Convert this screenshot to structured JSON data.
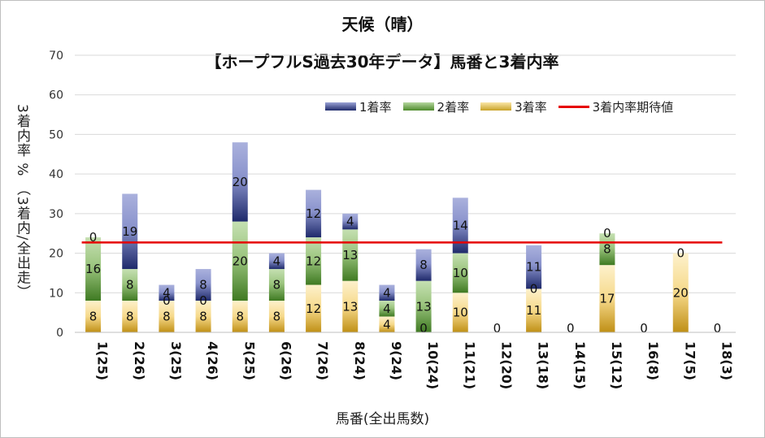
{
  "chart_data": {
    "type": "bar",
    "stacked": true,
    "title": "天候（晴）",
    "subtitle": "【ホープフルS過去30年データ】馬番と3着内率",
    "xlabel": "馬番(全出馬数)",
    "ylabel": "3着内率 %  （3着内/全出走）",
    "ylim": [
      0,
      70
    ],
    "yticks": [
      0,
      10,
      20,
      30,
      40,
      50,
      60,
      70
    ],
    "categories": [
      "1(25)",
      "2(26)",
      "3(25)",
      "4(26)",
      "5(25)",
      "6(26)",
      "7(26)",
      "8(24)",
      "9(24)",
      "10(24)",
      "11(21)",
      "12(20)",
      "13(18)",
      "14(15)",
      "15(12)",
      "16(8)",
      "17(5)",
      "18(3)"
    ],
    "series": [
      {
        "name": "3着率",
        "color": "#c9a227",
        "values": [
          8,
          8,
          8,
          8,
          8,
          8,
          12,
          13,
          4,
          0,
          10,
          0,
          11,
          0,
          17,
          0,
          20,
          0
        ]
      },
      {
        "name": "2着率",
        "color": "#4d8a2a",
        "values": [
          16,
          8,
          0,
          0,
          20,
          8,
          12,
          13,
          4,
          13,
          10,
          0,
          0,
          0,
          8,
          0,
          0,
          0
        ]
      },
      {
        "name": "1着率",
        "color": "#1f2a6b",
        "values": [
          0,
          19,
          4,
          8,
          20,
          4,
          12,
          4,
          4,
          8,
          14,
          0,
          11,
          0,
          0,
          0,
          0,
          0
        ]
      }
    ],
    "labels": {
      "3着率": [
        "8",
        "8",
        "8",
        "8",
        "8",
        "8",
        "12",
        "13",
        "4",
        "0",
        "10",
        "0",
        "11",
        "0",
        "17",
        "0",
        "20",
        "0"
      ],
      "2着率": [
        "16",
        "8",
        "0",
        "0",
        "20",
        "8",
        "12",
        "13",
        "4",
        "13",
        "10",
        "",
        "0",
        "",
        "8",
        "",
        "0",
        ""
      ],
      "1着率": [
        "0",
        "19",
        "4",
        "8",
        "20",
        "4",
        "12",
        "4",
        "4",
        "8",
        "14",
        "",
        "11",
        "",
        "0",
        "",
        "",
        ""
      ]
    },
    "reference_line": {
      "name": "3着内率期待値",
      "value": 22.7,
      "color": "#e60000"
    },
    "legend_position": "top-right",
    "grid": true
  }
}
